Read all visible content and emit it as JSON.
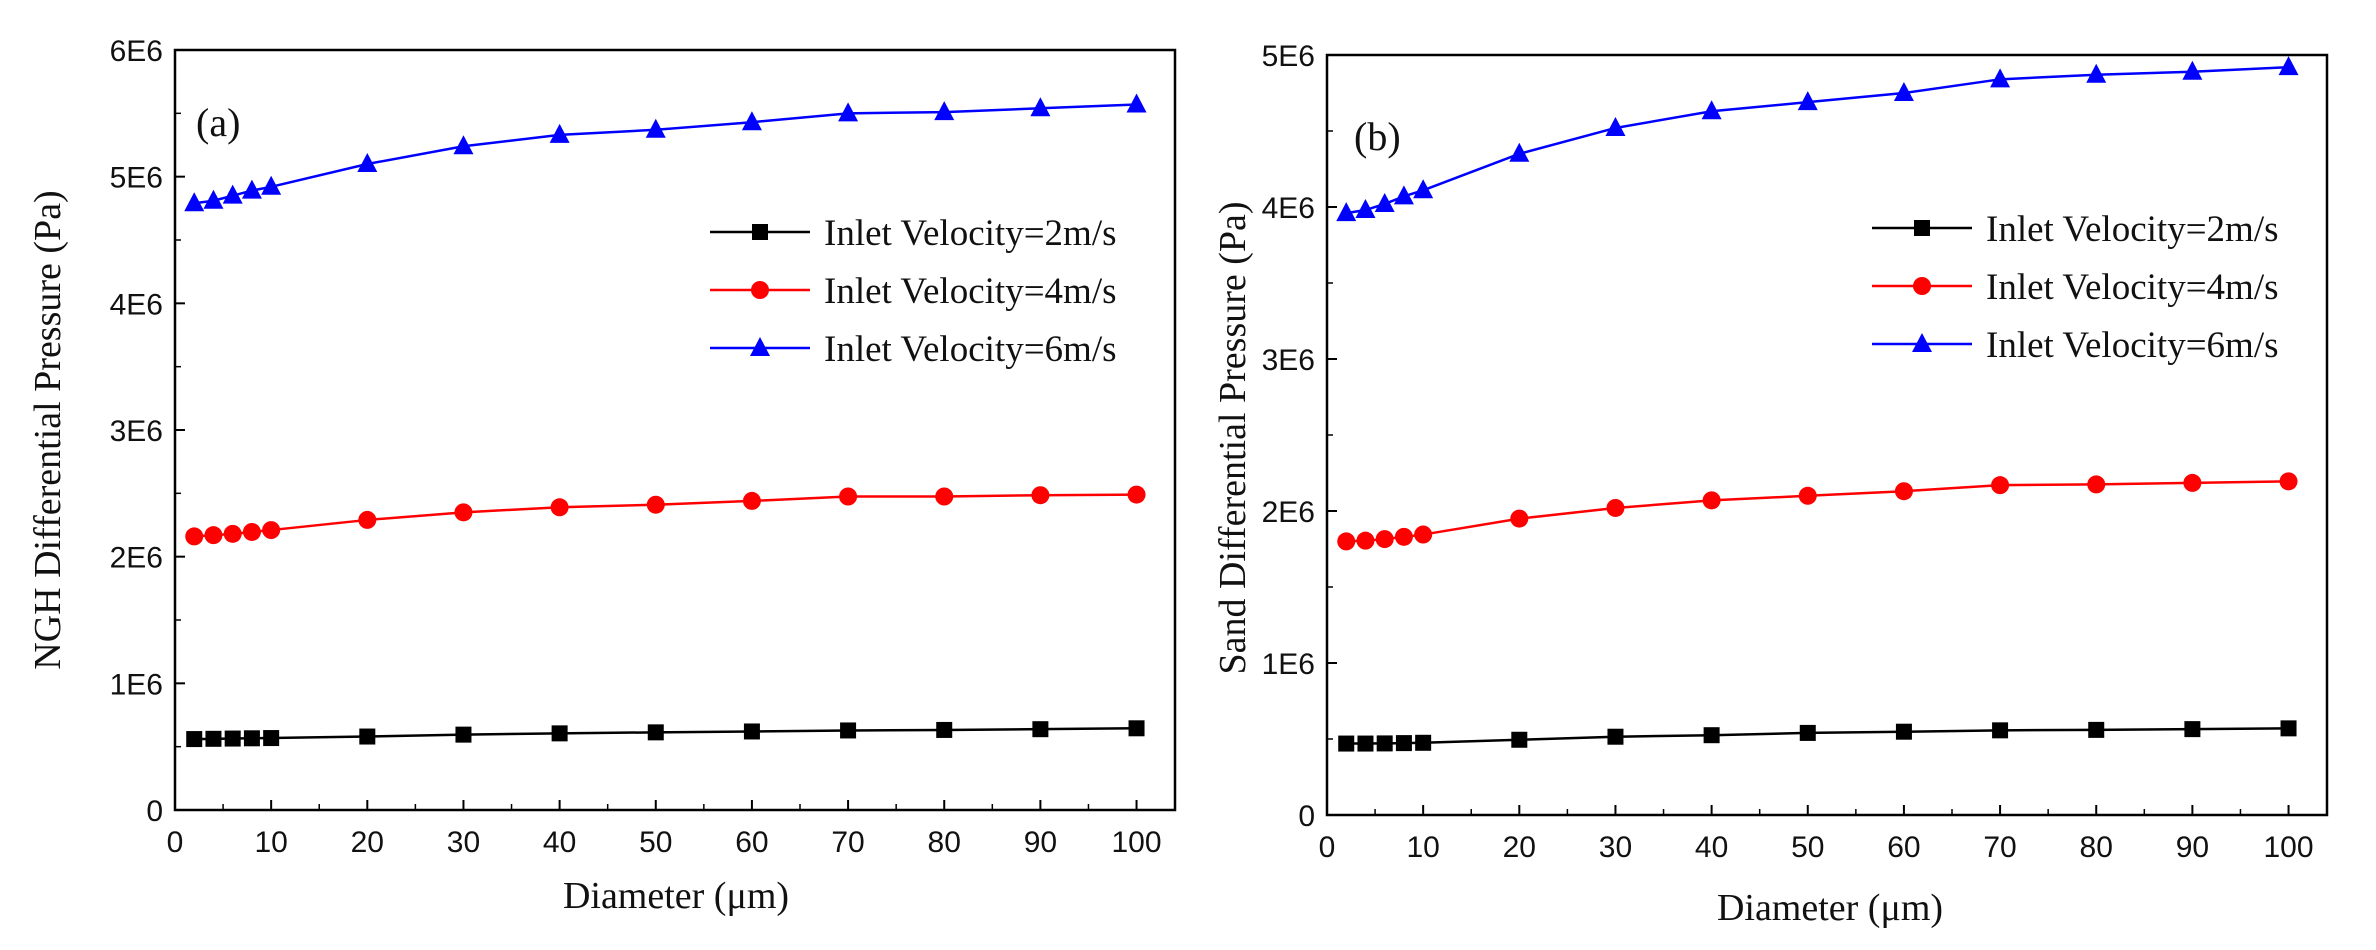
{
  "chart_data": [
    {
      "type": "line",
      "panel_label": "(a)",
      "title": "",
      "xlabel": "Diameter (μm)",
      "ylabel": "NGH Differential Pressure (Pa)",
      "xlim": [
        0,
        104
      ],
      "ylim": [
        0,
        6000000
      ],
      "xticks": [
        0,
        10,
        20,
        30,
        40,
        50,
        60,
        70,
        80,
        90,
        100
      ],
      "xtick_labels": [
        "0",
        "10",
        "20",
        "30",
        "40",
        "50",
        "60",
        "70",
        "80",
        "90",
        "100"
      ],
      "yticks": [
        0,
        1000000,
        2000000,
        3000000,
        4000000,
        5000000,
        6000000
      ],
      "ytick_labels": [
        "0",
        "1E6",
        "2E6",
        "3E6",
        "4E6",
        "5E6",
        "6E6"
      ],
      "x": [
        2,
        4,
        6,
        8,
        10,
        20,
        30,
        40,
        50,
        60,
        70,
        80,
        90,
        100
      ],
      "legend_position": "middle-right",
      "series": [
        {
          "name": "Inlet Velocity=2m/s",
          "color": "#000000",
          "marker": "square",
          "values": [
            560000,
            562000,
            564000,
            566000,
            568000,
            580000,
            595000,
            605000,
            613000,
            620000,
            628000,
            632000,
            638000,
            645000
          ]
        },
        {
          "name": "Inlet Velocity=4m/s",
          "color": "#ff0000",
          "marker": "circle",
          "values": [
            2160000,
            2170000,
            2180000,
            2195000,
            2210000,
            2290000,
            2350000,
            2390000,
            2410000,
            2440000,
            2475000,
            2475000,
            2485000,
            2490000
          ]
        },
        {
          "name": "Inlet Velocity=6m/s",
          "color": "#0000ff",
          "marker": "triangle",
          "values": [
            4790000,
            4810000,
            4850000,
            4890000,
            4920000,
            5100000,
            5240000,
            5330000,
            5370000,
            5430000,
            5500000,
            5510000,
            5540000,
            5570000
          ]
        }
      ]
    },
    {
      "type": "line",
      "panel_label": "(b)",
      "title": "",
      "xlabel": "Diameter (μm)",
      "ylabel": "Sand Differential Pressure (Pa)",
      "xlim": [
        0,
        104
      ],
      "ylim": [
        0,
        5000000
      ],
      "xticks": [
        0,
        10,
        20,
        30,
        40,
        50,
        60,
        70,
        80,
        90,
        100
      ],
      "xtick_labels": [
        "0",
        "10",
        "20",
        "30",
        "40",
        "50",
        "60",
        "70",
        "80",
        "90",
        "100"
      ],
      "yticks": [
        0,
        1000000,
        2000000,
        3000000,
        4000000,
        5000000
      ],
      "ytick_labels": [
        "0",
        "1E6",
        "2E6",
        "3E6",
        "4E6",
        "5E6"
      ],
      "x": [
        2,
        4,
        6,
        8,
        10,
        20,
        30,
        40,
        50,
        60,
        70,
        80,
        90,
        100
      ],
      "legend_position": "upper-right",
      "series": [
        {
          "name": "Inlet Velocity=2m/s",
          "color": "#000000",
          "marker": "square",
          "values": [
            470000,
            470000,
            471000,
            473000,
            475000,
            495000,
            515000,
            525000,
            540000,
            548000,
            557000,
            560000,
            565000,
            570000
          ]
        },
        {
          "name": "Inlet Velocity=4m/s",
          "color": "#ff0000",
          "marker": "circle",
          "values": [
            1800000,
            1805000,
            1815000,
            1830000,
            1845000,
            1950000,
            2020000,
            2070000,
            2100000,
            2130000,
            2170000,
            2175000,
            2185000,
            2195000
          ]
        },
        {
          "name": "Inlet Velocity=6m/s",
          "color": "#0000ff",
          "marker": "triangle",
          "values": [
            3960000,
            3980000,
            4020000,
            4070000,
            4110000,
            4350000,
            4520000,
            4630000,
            4690000,
            4750000,
            4840000,
            4870000,
            4890000,
            4920000
          ]
        }
      ]
    }
  ]
}
